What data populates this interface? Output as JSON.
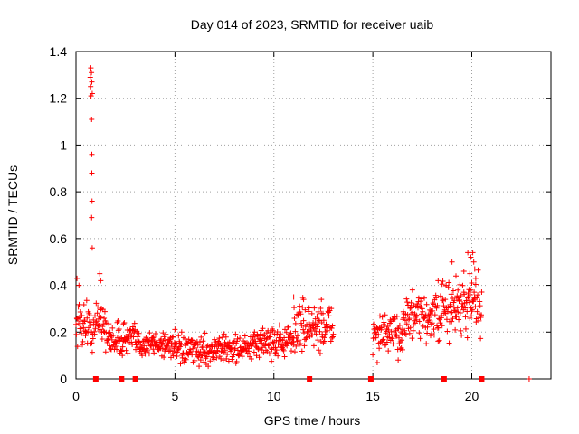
{
  "chart_data": {
    "type": "scatter",
    "title": "Day 014 of 2023, SRMTID for receiver uaib",
    "xlabel": "GPS time / hours",
    "ylabel": "SRMTID / TECUs",
    "xlim": [
      0,
      24
    ],
    "ylim": [
      0,
      1.4
    ],
    "xticks": [
      0,
      5,
      10,
      15,
      20
    ],
    "yticks": [
      0,
      0.2,
      0.4,
      0.6,
      0.8,
      1,
      1.2,
      1.4
    ],
    "ytick_labels": [
      "0",
      "0.2",
      "0.4",
      "0.6",
      "0.8",
      "1",
      "1.2",
      "1.4"
    ],
    "grid": true,
    "series_color": "#ff0000",
    "marker": "plus",
    "segments": [
      {
        "start": 0.0,
        "end": 0.7,
        "base": 0.24,
        "spread": 0.07,
        "step": 0.02
      },
      {
        "start": 0.7,
        "end": 1.0,
        "base": 0.2,
        "spread": 0.06,
        "step": 0.02
      },
      {
        "start": 1.0,
        "end": 1.5,
        "base": 0.26,
        "spread": 0.07,
        "step": 0.02
      },
      {
        "start": 1.5,
        "end": 3.0,
        "base": 0.17,
        "spread": 0.05,
        "step": 0.02
      },
      {
        "start": 3.0,
        "end": 5.0,
        "base": 0.15,
        "spread": 0.04,
        "step": 0.02
      },
      {
        "start": 5.0,
        "end": 7.0,
        "base": 0.12,
        "spread": 0.04,
        "step": 0.02
      },
      {
        "start": 7.0,
        "end": 9.0,
        "base": 0.13,
        "spread": 0.04,
        "step": 0.02
      },
      {
        "start": 9.0,
        "end": 11.0,
        "base": 0.16,
        "spread": 0.05,
        "step": 0.02
      },
      {
        "start": 11.0,
        "end": 13.0,
        "base": 0.22,
        "spread": 0.07,
        "step": 0.02
      },
      {
        "start": 15.0,
        "end": 16.5,
        "base": 0.19,
        "spread": 0.06,
        "step": 0.02
      },
      {
        "start": 16.5,
        "end": 18.5,
        "base": 0.26,
        "spread": 0.07,
        "step": 0.02
      },
      {
        "start": 18.5,
        "end": 20.5,
        "base": 0.3,
        "spread": 0.09,
        "step": 0.02
      }
    ],
    "outliers": [
      {
        "x": 0.75,
        "y": 1.33
      },
      {
        "x": 0.78,
        "y": 1.31
      },
      {
        "x": 0.72,
        "y": 1.29
      },
      {
        "x": 0.8,
        "y": 1.27
      },
      {
        "x": 0.74,
        "y": 1.25
      },
      {
        "x": 0.82,
        "y": 1.22
      },
      {
        "x": 0.76,
        "y": 1.21
      },
      {
        "x": 0.79,
        "y": 1.11
      },
      {
        "x": 0.8,
        "y": 0.96
      },
      {
        "x": 0.8,
        "y": 0.88
      },
      {
        "x": 0.81,
        "y": 0.76
      },
      {
        "x": 0.79,
        "y": 0.69
      },
      {
        "x": 0.82,
        "y": 0.56
      },
      {
        "x": 1.2,
        "y": 0.45
      },
      {
        "x": 1.25,
        "y": 0.42
      },
      {
        "x": 0.05,
        "y": 0.43
      },
      {
        "x": 0.15,
        "y": 0.4
      },
      {
        "x": 11.0,
        "y": 0.35
      },
      {
        "x": 11.5,
        "y": 0.34
      },
      {
        "x": 12.4,
        "y": 0.34
      },
      {
        "x": 18.7,
        "y": 0.4
      },
      {
        "x": 19.0,
        "y": 0.5
      },
      {
        "x": 19.2,
        "y": 0.44
      },
      {
        "x": 19.6,
        "y": 0.46
      },
      {
        "x": 19.8,
        "y": 0.54
      },
      {
        "x": 19.95,
        "y": 0.52
      },
      {
        "x": 20.05,
        "y": 0.54
      },
      {
        "x": 20.1,
        "y": 0.5
      },
      {
        "x": 20.15,
        "y": 0.47
      },
      {
        "x": 20.2,
        "y": 0.43
      },
      {
        "x": 19.9,
        "y": 0.45
      },
      {
        "x": 20.0,
        "y": 0.41
      },
      {
        "x": 18.3,
        "y": 0.42
      },
      {
        "x": 19.3,
        "y": 0.38
      }
    ],
    "zero_markers": [
      1.0,
      2.3,
      3.0,
      11.8,
      14.9,
      18.6,
      20.5
    ],
    "zero_plus": [
      22.9
    ]
  }
}
